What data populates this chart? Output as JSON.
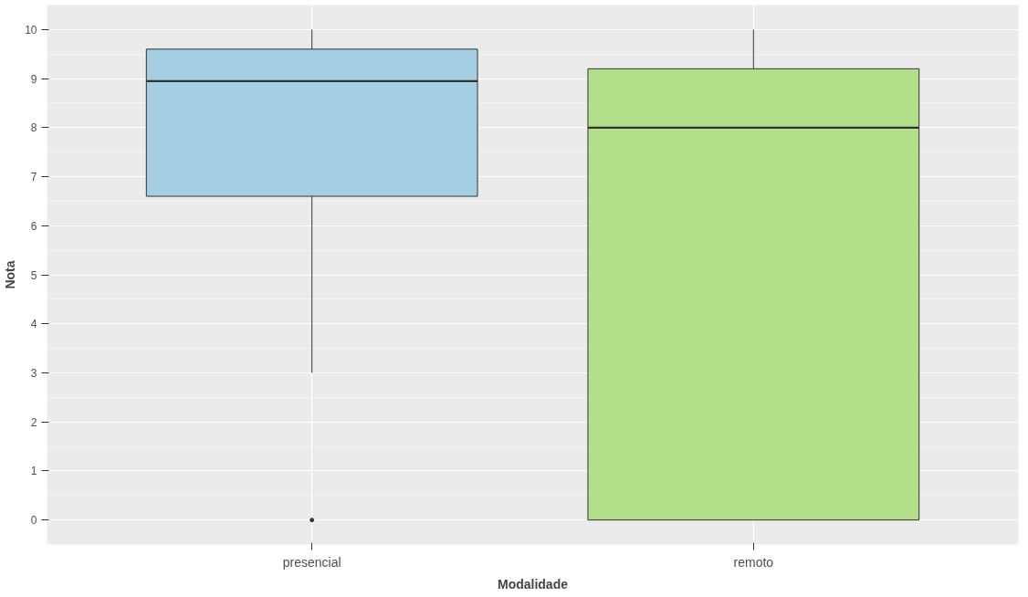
{
  "chart_data": {
    "type": "box",
    "xlabel": "Modalidade",
    "ylabel": "Nota",
    "categories": [
      "presencial",
      "remoto"
    ],
    "colors": [
      "#a6cee3",
      "#b2df8a"
    ],
    "boxes": [
      {
        "low": 3,
        "q1": 6.6,
        "median": 8.95,
        "q3": 9.6,
        "high": 10,
        "outliers": [
          0
        ]
      },
      {
        "low": 0,
        "q1": 0,
        "median": 8,
        "q3": 9.2,
        "high": 10
      }
    ],
    "ylim": [
      -0.5,
      10.5
    ],
    "yticks": [
      0,
      1,
      2,
      3,
      4,
      5,
      6,
      7,
      8,
      9,
      10
    ],
    "grid": true
  }
}
